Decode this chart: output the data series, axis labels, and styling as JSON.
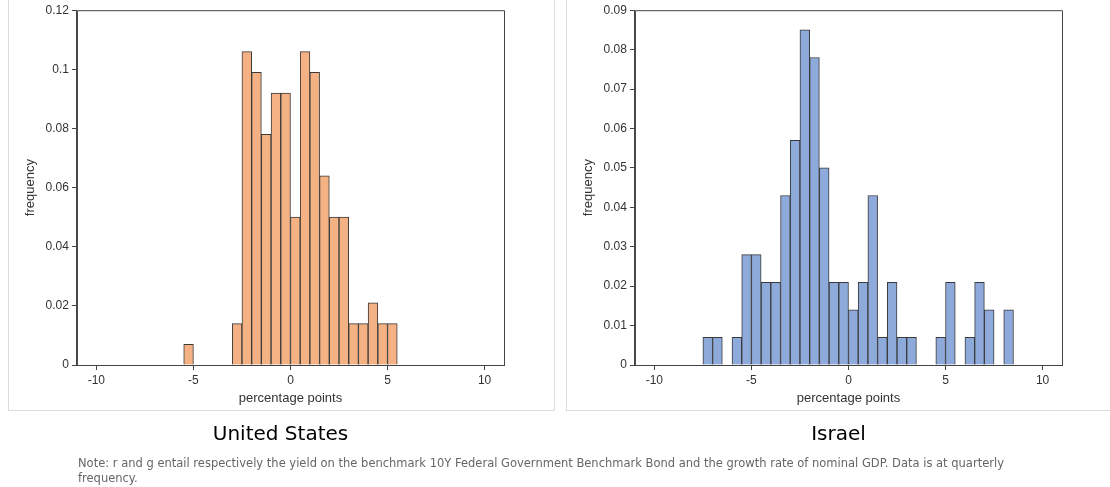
{
  "chart_data": [
    {
      "type": "histogram",
      "title": "United States",
      "xlabel": "percentage points",
      "ylabel": "frequency",
      "color": "#f4b183",
      "bins": [
        -10,
        -9.5,
        -9,
        -8.5,
        -8,
        -7.5,
        -7,
        -6.5,
        -6,
        -5.5,
        -5,
        -4.5,
        -4,
        -3.5,
        -3,
        -2.5,
        -2,
        -1.5,
        -1,
        -0.5,
        0,
        0.5,
        1,
        1.5,
        2,
        2.5,
        3,
        3.5,
        4,
        4.5,
        5,
        5.5,
        6,
        6.5,
        7,
        7.5,
        8,
        8.5,
        9,
        9.5,
        10
      ],
      "values": [
        0,
        0,
        0,
        0,
        0,
        0,
        0,
        0,
        0,
        0.007,
        0,
        0,
        0,
        0,
        0.014,
        0.106,
        0.099,
        0.078,
        0.092,
        0.092,
        0.05,
        0.106,
        0.099,
        0.064,
        0.05,
        0.05,
        0.014,
        0.014,
        0.021,
        0.014,
        0.014,
        0,
        0,
        0,
        0,
        0,
        0,
        0,
        0,
        0
      ],
      "xlim": [
        -11,
        11
      ],
      "xticks": [
        -10,
        -5,
        0,
        5,
        10
      ],
      "ylim": [
        0,
        0.12
      ],
      "yticks": [
        0,
        0.02,
        0.04,
        0.06,
        0.08,
        0.1,
        0.12
      ],
      "grid": false,
      "legend": false,
      "annotations": [
        "Note: r and g entail respectively the yield on the benchmark 10Y Federal Government Benchmark Bond and the growth rate of nominal GDP. Data is at quarterly frequency."
      ]
    },
    {
      "type": "histogram",
      "title": "Israel",
      "xlabel": "percentage points",
      "ylabel": "frequency",
      "color": "#8eaadb",
      "bins": [
        -10,
        -9.5,
        -9,
        -8.5,
        -8,
        -7.5,
        -7,
        -6.5,
        -6,
        -5.5,
        -5,
        -4.5,
        -4,
        -3.5,
        -3,
        -2.5,
        -2,
        -1.5,
        -1,
        -0.5,
        0,
        0.5,
        1,
        1.5,
        2,
        2.5,
        3,
        3.5,
        4,
        4.5,
        5,
        5.5,
        6,
        6.5,
        7,
        7.5,
        8,
        8.5,
        9,
        9.5,
        10
      ],
      "values": [
        0,
        0,
        0,
        0,
        0,
        0.007,
        0.007,
        0,
        0.007,
        0.028,
        0.028,
        0.021,
        0.021,
        0.043,
        0.057,
        0.085,
        0.078,
        0.05,
        0.021,
        0.021,
        0.014,
        0.021,
        0.043,
        0.007,
        0.021,
        0.007,
        0.007,
        0,
        0,
        0.007,
        0.021,
        0,
        0.007,
        0.021,
        0.014,
        0,
        0.014,
        0,
        0,
        0
      ],
      "xlim": [
        -11,
        11
      ],
      "xticks": [
        -10,
        -5,
        0,
        5,
        10
      ],
      "ylim": [
        0,
        0.09
      ],
      "yticks": [
        0,
        0.01,
        0.02,
        0.03,
        0.04,
        0.05,
        0.06,
        0.07,
        0.08,
        0.09
      ],
      "grid": false,
      "legend": false
    }
  ]
}
